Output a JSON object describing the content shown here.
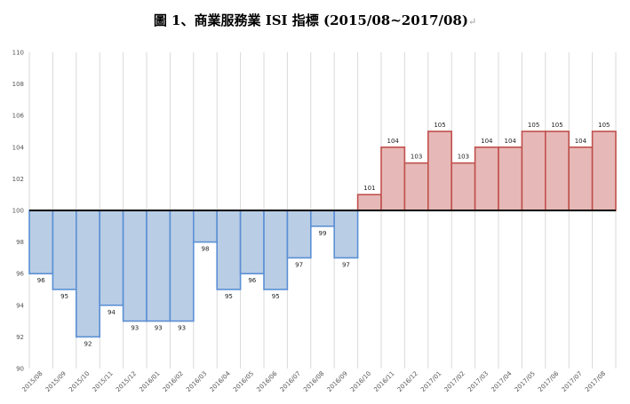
{
  "title": "圖 1、商業服務業 ISI 指標 (2015/08~2017/08)",
  "title_mark": "↵",
  "chart_data": {
    "type": "bar",
    "baseline": 100,
    "ylim": [
      90,
      110
    ],
    "yticks": [
      90,
      92,
      94,
      96,
      98,
      100,
      102,
      104,
      106,
      108,
      110
    ],
    "grid": "vertical",
    "categories": [
      "2015/08",
      "2015/09",
      "2015/10",
      "2015/11",
      "2015/12",
      "2016/01",
      "2016/02",
      "2016/03",
      "2016/04",
      "2016/05",
      "2016/06",
      "2016/07",
      "2016/08",
      "2016/09",
      "2016/10",
      "2016/11",
      "2016/12",
      "2017/01",
      "2017/02",
      "2017/03",
      "2017/04",
      "2017/05",
      "2017/06",
      "2017/07",
      "2017/08"
    ],
    "values": [
      96,
      95,
      92,
      94,
      93,
      93,
      93,
      98,
      95,
      96,
      95,
      97,
      99,
      97,
      101,
      104,
      103,
      105,
      103,
      104,
      104,
      105,
      105,
      104,
      105
    ],
    "colors": {
      "below_fill": "#b9cde5",
      "below_stroke": "#5b8fd4",
      "above_fill": "#e6b9b8",
      "above_stroke": "#c0504d",
      "baseline": "#000000",
      "grid": "#d9d9d9"
    }
  }
}
